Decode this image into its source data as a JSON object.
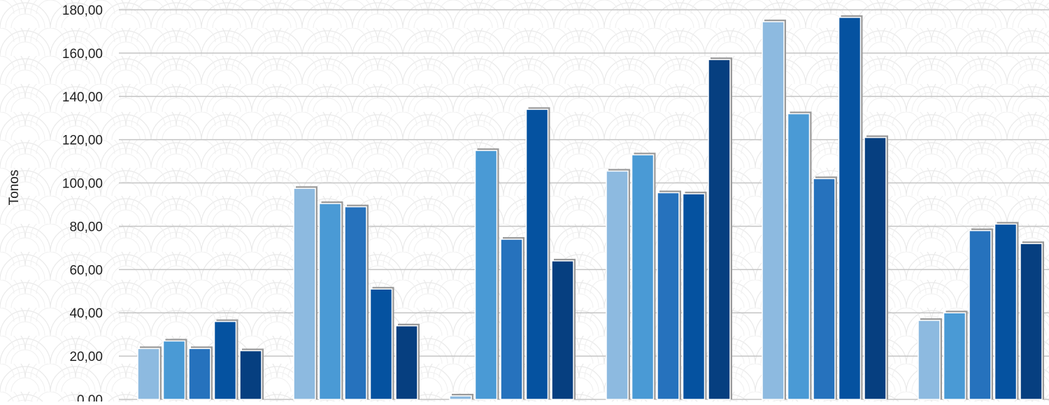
{
  "chart_data": {
    "type": "bar",
    "ylabel": "Tonos",
    "ylim": [
      0,
      180
    ],
    "y_ticks": [
      "0,00",
      "20,00",
      "40,00",
      "60,00",
      "80,00",
      "100,00",
      "120,00",
      "140,00",
      "160,00",
      "180,00"
    ],
    "grid": true,
    "categories": [
      "",
      "",
      "",
      "",
      "",
      ""
    ],
    "series": [
      {
        "color": "#8dbae0",
        "values": [
          23.5,
          97.5,
          0,
          105.5,
          174.5,
          36.5
        ]
      },
      {
        "color": "#4a9ad5",
        "values": [
          27,
          90.5,
          115,
          113,
          132,
          40
        ]
      },
      {
        "color": "#2672bd",
        "values": [
          23.5,
          89,
          74,
          95.5,
          102,
          78
        ]
      },
      {
        "color": "#0552a0",
        "values": [
          36,
          51,
          134,
          95,
          176.5,
          81
        ]
      },
      {
        "color": "#063f80",
        "values": [
          22.5,
          34,
          64,
          157,
          121,
          72
        ]
      }
    ]
  }
}
